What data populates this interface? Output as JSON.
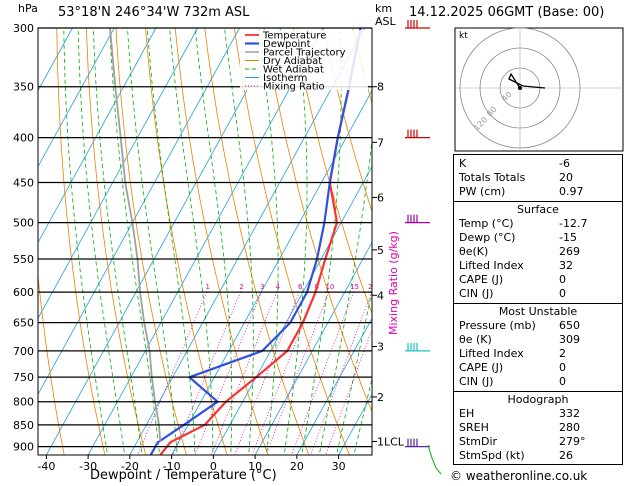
{
  "header": {
    "location": "53°18'N  246°34'W  732m  ASL",
    "datetime": "14.12.2025  06GMT  (Base: 00)"
  },
  "axes": {
    "left_unit": "hPa",
    "right_unit_top": "km",
    "right_unit_bottom": "ASL",
    "pressure_levels": [
      300,
      350,
      400,
      450,
      500,
      550,
      600,
      650,
      700,
      750,
      800,
      850,
      900
    ],
    "km_ticks": [
      {
        "km": "8",
        "p": 350
      },
      {
        "km": "7",
        "p": 405
      },
      {
        "km": "6",
        "p": 468
      },
      {
        "km": "5",
        "p": 537
      },
      {
        "km": "4",
        "p": 605
      },
      {
        "km": "3",
        "p": 692
      },
      {
        "km": "2",
        "p": 790
      },
      {
        "km": "1LCL",
        "p": 888
      }
    ],
    "temp_ticks": [
      -40,
      -30,
      -20,
      -10,
      0,
      10,
      20,
      30
    ],
    "xlabel": "Dewpoint / Temperature (°C)",
    "mixing_ratio_label": "Mixing Ratio (g/kg)",
    "mixing_ratios": [
      "1",
      "2",
      "3",
      "4",
      "6",
      "8",
      "10",
      "15",
      "20",
      "25"
    ]
  },
  "legend": [
    "Temperature",
    "Dewpoint",
    "Parcel Trajectory",
    "Dry Adiabat",
    "Wet Adiabat",
    "Isotherm",
    "Mixing Ratio"
  ],
  "colors": {
    "temperature": "#ff3030",
    "dewpoint": "#3050e0",
    "parcel": "#a0a0a0",
    "dry_adiabat": "#f08000",
    "wet_adiabat": "#00b000",
    "isotherm": "#20a0e0",
    "mixing_ratio": "#e000b0"
  },
  "chart_data": {
    "type": "line",
    "title": "Skew-T log-P sounding",
    "xlabel": "Dewpoint / Temperature (°C)",
    "ylabel": "hPa",
    "xlim": [
      -42,
      38
    ],
    "ylim": [
      920,
      300
    ],
    "series": [
      {
        "name": "Temperature",
        "points": [
          [
            -12.7,
            920
          ],
          [
            -12,
            890
          ],
          [
            -6,
            850
          ],
          [
            -4,
            800
          ],
          [
            0,
            750
          ],
          [
            4,
            700
          ],
          [
            4,
            650
          ],
          [
            3,
            600
          ],
          [
            1,
            550
          ],
          [
            -1,
            500
          ],
          [
            -8,
            450
          ],
          [
            -12,
            400
          ],
          [
            -16,
            350
          ],
          [
            -21,
            300
          ]
        ]
      },
      {
        "name": "Dewpoint",
        "points": [
          [
            -15,
            920
          ],
          [
            -15,
            890
          ],
          [
            -11,
            850
          ],
          [
            -6,
            800
          ],
          [
            -16,
            750
          ],
          [
            -2,
            700
          ],
          [
            1,
            650
          ],
          [
            1,
            600
          ],
          [
            -1,
            550
          ],
          [
            -4,
            500
          ],
          [
            -8,
            450
          ],
          [
            -12,
            400
          ],
          [
            -16,
            350
          ],
          [
            -21,
            300
          ]
        ]
      },
      {
        "name": "Parcel Trajectory",
        "points": [
          [
            -14.5,
            888
          ],
          [
            -17,
            850
          ],
          [
            -21,
            800
          ],
          [
            -25,
            750
          ],
          [
            -29,
            700
          ],
          [
            -34,
            650
          ],
          [
            -39,
            600
          ],
          [
            -44,
            550
          ],
          [
            -50,
            500
          ],
          [
            -57,
            450
          ],
          [
            -64,
            400
          ],
          [
            -72,
            350
          ],
          [
            -81,
            300
          ]
        ]
      }
    ]
  },
  "hodograph": {
    "label": "kt",
    "ring_labels": [
      "40",
      "80",
      "120"
    ]
  },
  "stats": {
    "rows1": [
      [
        "K",
        "-6"
      ],
      [
        "Totals Totals",
        "20"
      ],
      [
        "PW (cm)",
        "0.97"
      ]
    ],
    "surface": {
      "title": "Surface",
      "rows": [
        [
          "Temp (°C)",
          "-12.7"
        ],
        [
          "Dewp (°C)",
          "-15"
        ],
        [
          "θe(K)",
          "269"
        ],
        [
          "Lifted Index",
          "32"
        ],
        [
          "CAPE (J)",
          "0"
        ],
        [
          "CIN (J)",
          "0"
        ]
      ]
    },
    "unstable": {
      "title": "Most Unstable",
      "rows": [
        [
          "Pressure (mb)",
          "650"
        ],
        [
          "θe (K)",
          "309"
        ],
        [
          "Lifted Index",
          "2"
        ],
        [
          "CAPE (J)",
          "0"
        ],
        [
          "CIN (J)",
          "0"
        ]
      ]
    },
    "hodo": {
      "title": "Hodograph",
      "rows": [
        [
          "EH",
          "332"
        ],
        [
          "SREH",
          "280"
        ],
        [
          "StmDir",
          "279°"
        ],
        [
          "StmSpd (kt)",
          "26"
        ]
      ]
    }
  },
  "credit": "© weatheronline.co.uk"
}
